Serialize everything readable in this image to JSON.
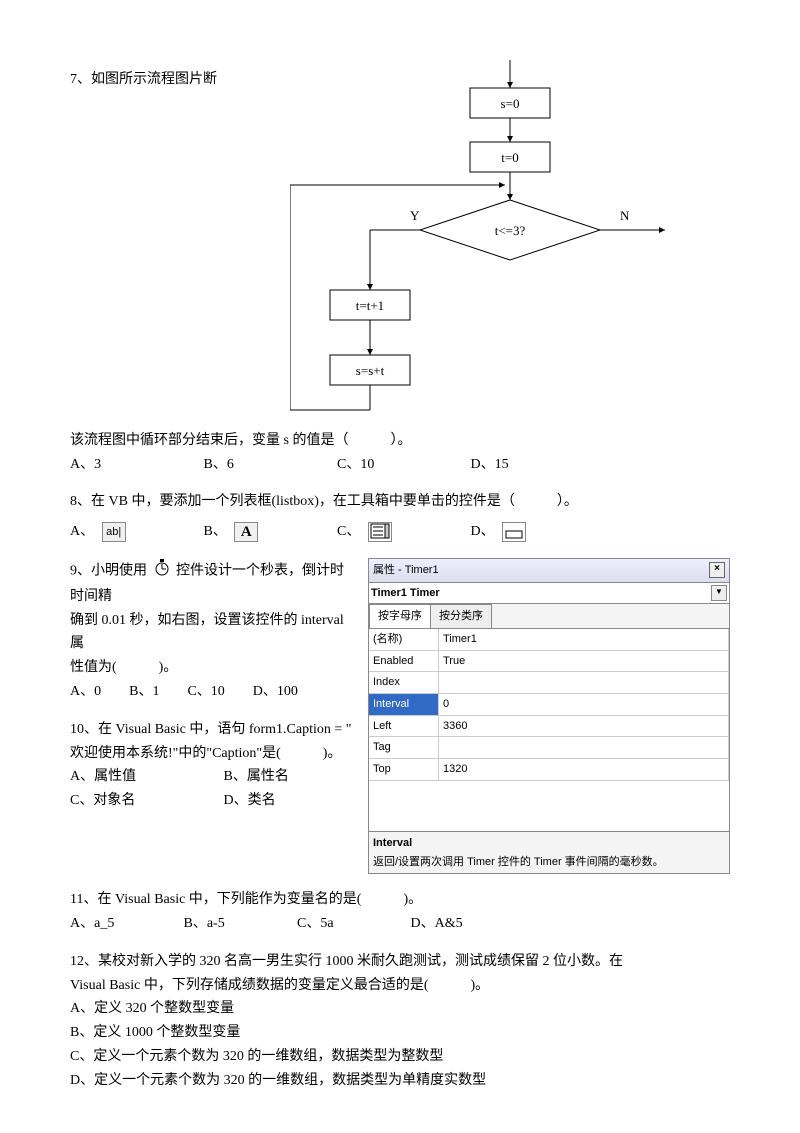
{
  "q7": {
    "heading": "7、如图所示流程图片断",
    "flow": {
      "box1": "s=0",
      "box2": "t=0",
      "cond": "t<=3?",
      "yes": "Y",
      "no": "N",
      "box3": "t=t+1",
      "box4": "s=s+t",
      "stroke": "#000000"
    },
    "after": "该流程图中循环部分结束后，变量 s 的值是（　　　）。",
    "opts": {
      "a": "A、3",
      "b": "B、6",
      "c": "C、10",
      "d": "D、15"
    }
  },
  "q8": {
    "text": "8、在 VB 中，要添加一个列表框(listbox)，在工具箱中要单击的控件是（　　　）。",
    "optA": "A、",
    "optB": "B、",
    "optC": "C、",
    "optD": "D、",
    "iconA": "ab|",
    "iconB": "A",
    "iconC": "≡",
    "iconD": ""
  },
  "q9": {
    "line1": "9、小明使用",
    "line1b": "控件设计一个秒表，倒计时时间精",
    "line2": "确到 0.01 秒，如右图，设置该控件的 interval 属",
    "line3": "性值为(　　　)。",
    "opts": "A、0　　B、1　　C、10　　D、100",
    "propsTitle": "属性 - Timer1",
    "combo": "Timer1 Timer",
    "tab1": "按字母序",
    "tab2": "按分类序",
    "rows": [
      {
        "name": "(名称)",
        "val": "Timer1",
        "sel": false
      },
      {
        "name": "Enabled",
        "val": "True",
        "sel": false
      },
      {
        "name": "Index",
        "val": "",
        "sel": false
      },
      {
        "name": "Interval",
        "val": "0",
        "sel": true
      },
      {
        "name": "Left",
        "val": "3360",
        "sel": false
      },
      {
        "name": "Tag",
        "val": "",
        "sel": false
      },
      {
        "name": "Top",
        "val": "1320",
        "sel": false
      }
    ],
    "descTitle": "Interval",
    "descBody": "返回/设置两次调用 Timer 控件的 Timer 事件间隔的毫秒数。"
  },
  "q10": {
    "l1": "10、在 Visual Basic 中，语句 form1.Caption = \"",
    "l2": "欢迎使用本系统!\"中的\"Caption\"是(　　　)。",
    "oA": "A、属性值",
    "oB": "B、属性名",
    "oC": "C、对象名",
    "oD": "D、类名"
  },
  "q11": {
    "text": "11、在 Visual Basic 中，下列能作为变量名的是(　　　)。",
    "opts": {
      "a": "A、a_5",
      "b": "B、a-5",
      "c": "C、5a",
      "d": "D、A&5"
    }
  },
  "q12": {
    "l1": "12、某校对新入学的 320 名高一男生实行 1000 米耐久跑测试，测试成绩保留 2 位小数。在",
    "l2": "Visual Basic 中，下列存储成绩数据的变量定义最合适的是(　　　)。",
    "oA": "A、定义 320 个整数型变量",
    "oB": "B、定义 1000 个整数型变量",
    "oC": "C、定义一个元素个数为 320 的一维数组，数据类型为整数型",
    "oD": "D、定义一个元素个数为 320 的一维数组，数据类型为单精度实数型"
  }
}
